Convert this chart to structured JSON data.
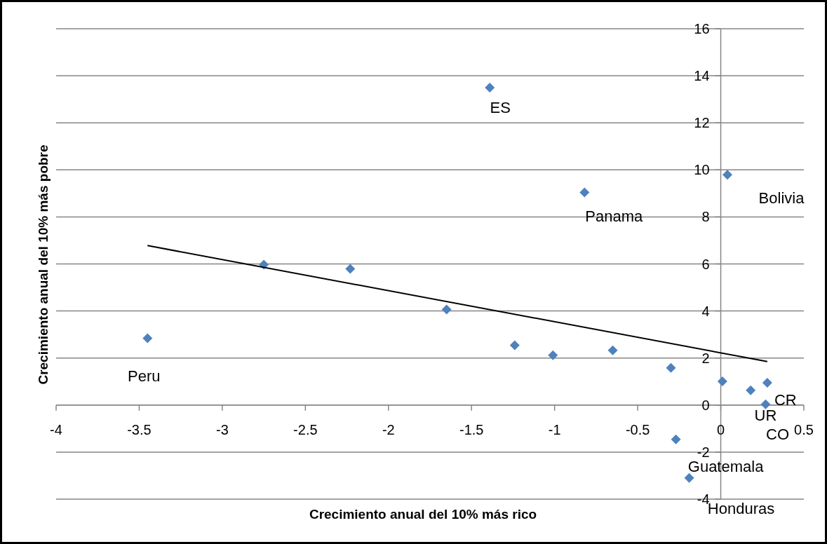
{
  "chart_data": {
    "type": "scatter",
    "xlabel": "Crecimiento anual del 10% más rico",
    "ylabel": "Crecimiento anual del 10% más pobre",
    "xlim": [
      -4,
      0.5
    ],
    "xticks": [
      -4,
      -3.5,
      -3,
      -2.5,
      -2,
      -1.5,
      -1,
      -0.5,
      0,
      0.5
    ],
    "ylim": [
      -4,
      16
    ],
    "yticks": [
      -4,
      -2,
      0,
      2,
      4,
      6,
      8,
      10,
      12,
      14,
      16
    ],
    "grid": "y",
    "series": [
      {
        "marker": "diamond",
        "color": "#4f81bd",
        "x": [
          -1.39,
          -0.82,
          0.04,
          -2.75,
          -2.23,
          -1.65,
          -3.45,
          -1.24,
          -1.01,
          -0.65,
          -0.3,
          0.01,
          0.18,
          0.28,
          0.27,
          -0.27,
          -0.19
        ],
        "values": [
          13.5,
          9.04,
          9.79,
          5.97,
          5.79,
          4.06,
          2.84,
          2.54,
          2.12,
          2.33,
          1.58,
          1.01,
          0.63,
          0.95,
          0.03,
          -1.46,
          -3.1
        ]
      },
      {
        "type": "line",
        "color": "#000000",
        "x": [
          -3.45,
          0.28
        ],
        "values": [
          6.78,
          1.85
        ]
      }
    ],
    "annotations": [
      {
        "text": "ES",
        "x": -1.39,
        "y": 13.5
      },
      {
        "text": "Panama",
        "x": -0.82,
        "y": 9.04
      },
      {
        "text": "Bolivia",
        "x": 0.04,
        "y": 9.79
      },
      {
        "text": "Peru",
        "x": -3.45,
        "y": 2.84
      },
      {
        "text": "CR",
        "x": 0.28,
        "y": 0.95
      },
      {
        "text": "UR",
        "x": 0.27,
        "y": 0.03
      },
      {
        "text": "CO",
        "x": 0.27,
        "y": 0.03
      },
      {
        "text": "Guatemala",
        "x": -0.27,
        "y": -1.46
      },
      {
        "text": "Honduras",
        "x": -0.19,
        "y": -3.1
      }
    ]
  }
}
